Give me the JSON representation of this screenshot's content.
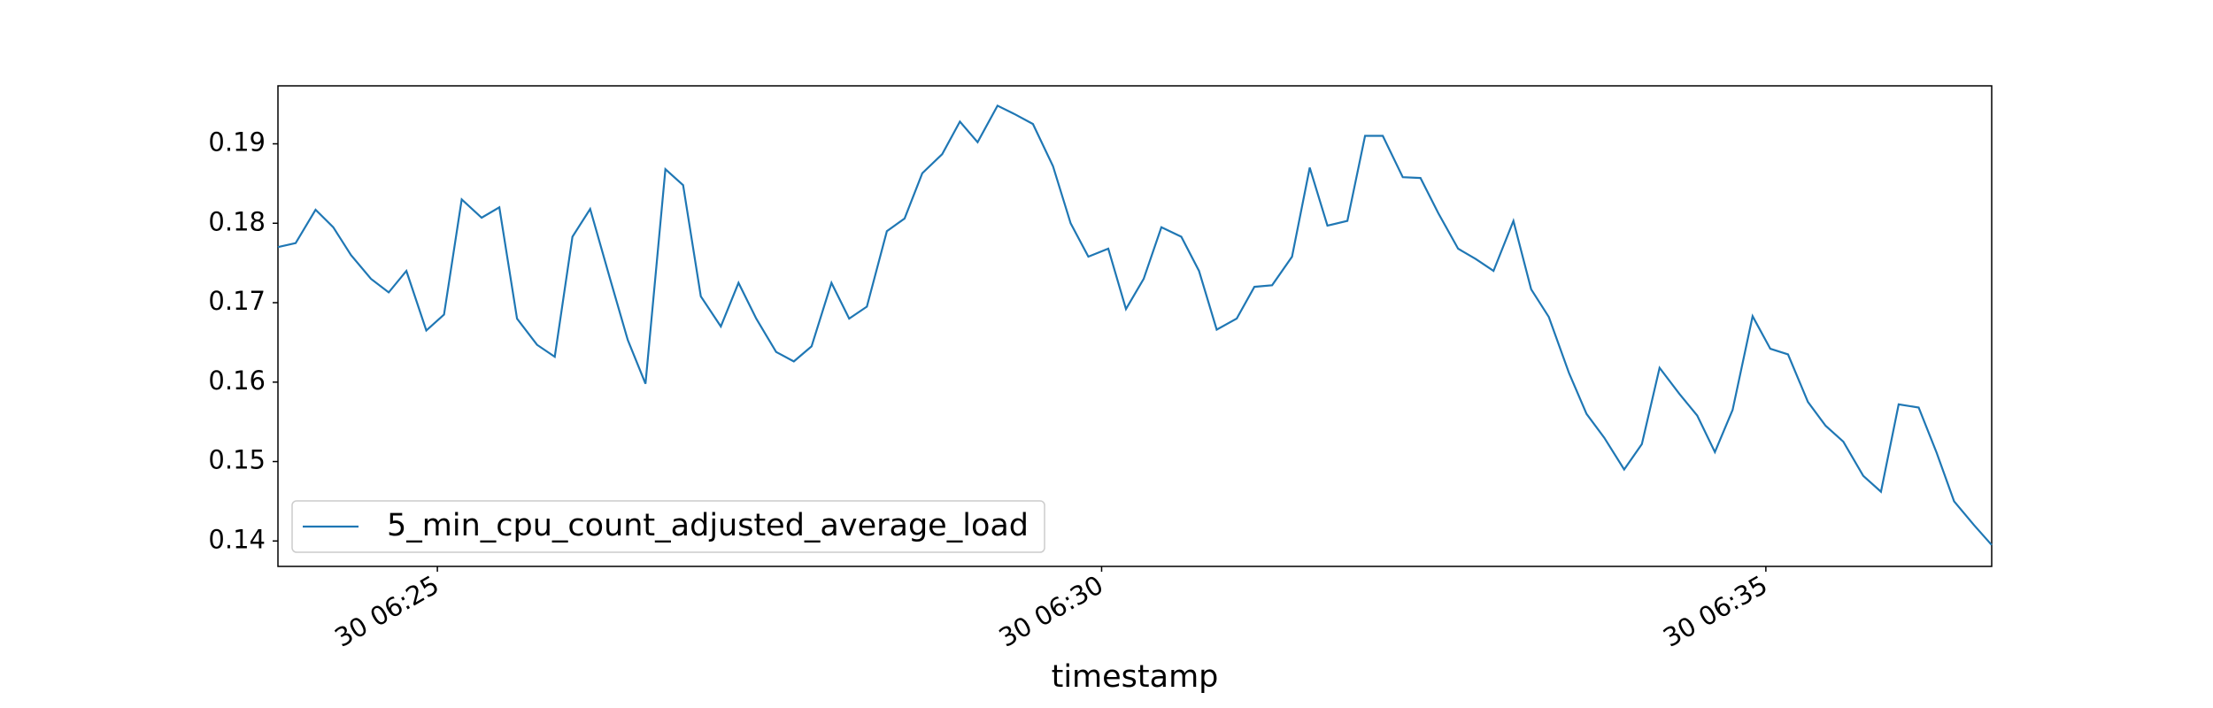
{
  "chart_data": {
    "type": "line",
    "xlabel": "timestamp",
    "x": [
      "30 06:23:48",
      "30 06:23:56",
      "30 06:24:05",
      "30 06:24:13",
      "30 06:24:21",
      "30 06:24:30",
      "30 06:24:38",
      "30 06:24:46",
      "30 06:24:55",
      "30 06:25:03",
      "30 06:25:11",
      "30 06:25:20",
      "30 06:25:28",
      "30 06:25:36",
      "30 06:25:45",
      "30 06:25:53",
      "30 06:26:01",
      "30 06:26:09",
      "30 06:26:18",
      "30 06:26:26",
      "30 06:26:34",
      "30 06:26:43",
      "30 06:26:51",
      "30 06:26:59",
      "30 06:27:08",
      "30 06:27:16",
      "30 06:27:24",
      "30 06:27:33",
      "30 06:27:41",
      "30 06:27:49",
      "30 06:27:58",
      "30 06:28:06",
      "30 06:28:14",
      "30 06:28:23",
      "30 06:28:31",
      "30 06:28:39",
      "30 06:28:48",
      "30 06:28:56",
      "30 06:29:04",
      "30 06:29:13",
      "30 06:29:21",
      "30 06:29:29",
      "30 06:29:38",
      "30 06:29:46",
      "30 06:29:54",
      "30 06:30:03",
      "30 06:30:11",
      "30 06:30:19",
      "30 06:30:27",
      "30 06:30:36",
      "30 06:30:44",
      "30 06:30:52",
      "30 06:31:01",
      "30 06:31:09",
      "30 06:31:17",
      "30 06:31:26",
      "30 06:31:34",
      "30 06:31:42",
      "30 06:31:51",
      "30 06:31:59",
      "30 06:32:07",
      "30 06:32:16",
      "30 06:32:24",
      "30 06:32:32",
      "30 06:32:41",
      "30 06:32:49",
      "30 06:32:57",
      "30 06:33:06",
      "30 06:33:14",
      "30 06:33:22",
      "30 06:33:31",
      "30 06:33:39",
      "30 06:33:47",
      "30 06:33:56",
      "30 06:34:04",
      "30 06:34:12",
      "30 06:34:21",
      "30 06:34:29",
      "30 06:34:37",
      "30 06:34:45",
      "30 06:34:54",
      "30 06:35:02",
      "30 06:35:10",
      "30 06:35:19",
      "30 06:35:27",
      "30 06:35:35",
      "30 06:35:44",
      "30 06:35:52",
      "30 06:36:00",
      "30 06:36:09",
      "30 06:36:17",
      "30 06:36:25",
      "30 06:36:34",
      "30 06:36:42"
    ],
    "series": [
      {
        "name": "5_min_cpu_count_adjusted_average_load",
        "color": "#1f77b4",
        "values": [
          0.177,
          0.1775,
          0.1817,
          0.1795,
          0.176,
          0.173,
          0.1713,
          0.174,
          0.1665,
          0.1685,
          0.183,
          0.1807,
          0.182,
          0.168,
          0.1647,
          0.1632,
          0.1783,
          0.1818,
          0.173,
          0.1653,
          0.1598,
          0.1868,
          0.1848,
          0.1708,
          0.167,
          0.1725,
          0.168,
          0.1638,
          0.1626,
          0.1645,
          0.1725,
          0.168,
          0.1695,
          0.179,
          0.1806,
          0.1863,
          0.1887,
          0.1928,
          0.1902,
          0.1948,
          0.1937,
          0.1925,
          0.1872,
          0.18,
          0.1758,
          0.1768,
          0.1692,
          0.173,
          0.1795,
          0.1783,
          0.174,
          0.1666,
          0.168,
          0.172,
          0.1722,
          0.1758,
          0.187,
          0.1797,
          0.1803,
          0.191,
          0.191,
          0.1858,
          0.1857,
          0.1813,
          0.1768,
          0.1755,
          0.174,
          0.1803,
          0.1717,
          0.1682,
          0.1612,
          0.156,
          0.153,
          0.149,
          0.1522,
          0.1618,
          0.1585,
          0.1558,
          0.1512,
          0.1565,
          0.1683,
          0.1642,
          0.1635,
          0.1575,
          0.1545,
          0.1525,
          0.1482,
          0.1462,
          0.1572,
          0.1568,
          0.1512,
          0.145,
          0.142,
          0.1395
        ]
      }
    ],
    "xlim": [
      "30 06:23:48",
      "30 06:36:42"
    ],
    "xticks": [
      "30 06:25",
      "30 06:30",
      "30 06:35"
    ],
    "ylim": [
      0.1368,
      0.1973
    ],
    "yticks": [
      0.14,
      0.15,
      0.16,
      0.17,
      0.18,
      0.19
    ],
    "grid": false,
    "legend": "lower left"
  }
}
